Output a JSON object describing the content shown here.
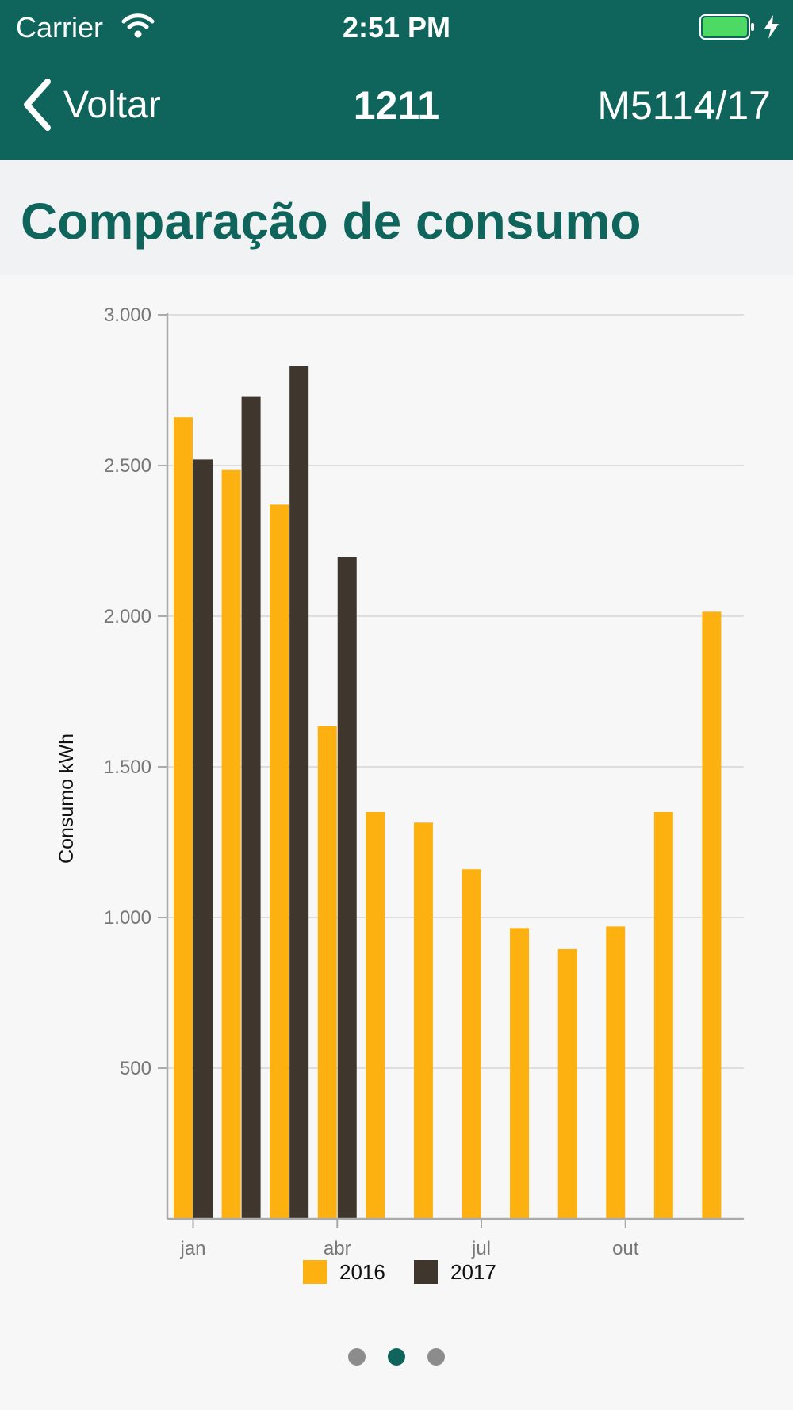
{
  "status_bar": {
    "carrier": "Carrier",
    "time": "2:51 PM"
  },
  "nav": {
    "back_label": "Voltar",
    "title": "1211",
    "right_label": "M5114/17"
  },
  "section": {
    "title": "Comparação de consumo"
  },
  "colors": {
    "header": "#0f655c",
    "series_2016": "#fdb111",
    "series_2017": "#3f362d"
  },
  "chart_data": {
    "type": "bar",
    "ylabel": "Consumo kWh",
    "xlabel": "",
    "ylim": [
      0,
      3000
    ],
    "yticks": [
      500,
      1000,
      1500,
      2000,
      2500,
      3000
    ],
    "ytick_labels": [
      "500",
      "1.000",
      "1.500",
      "2.000",
      "2.500",
      "3.000"
    ],
    "xtick_labels": [
      {
        "label": "jan",
        "index": 0
      },
      {
        "label": "abr",
        "index": 3
      },
      {
        "label": "jul",
        "index": 6
      },
      {
        "label": "out",
        "index": 9
      }
    ],
    "grid": true,
    "legend_position": "bottom",
    "series": [
      {
        "name": "2016",
        "values": [
          2660,
          2485,
          2370,
          1635,
          1350,
          1315,
          1160,
          965,
          895,
          970,
          1350,
          2015
        ]
      },
      {
        "name": "2017",
        "values": [
          2520,
          2730,
          2830,
          2195,
          null,
          null,
          null,
          null,
          null,
          null,
          null,
          null
        ]
      }
    ]
  },
  "pager": {
    "count": 3,
    "active": 1
  }
}
